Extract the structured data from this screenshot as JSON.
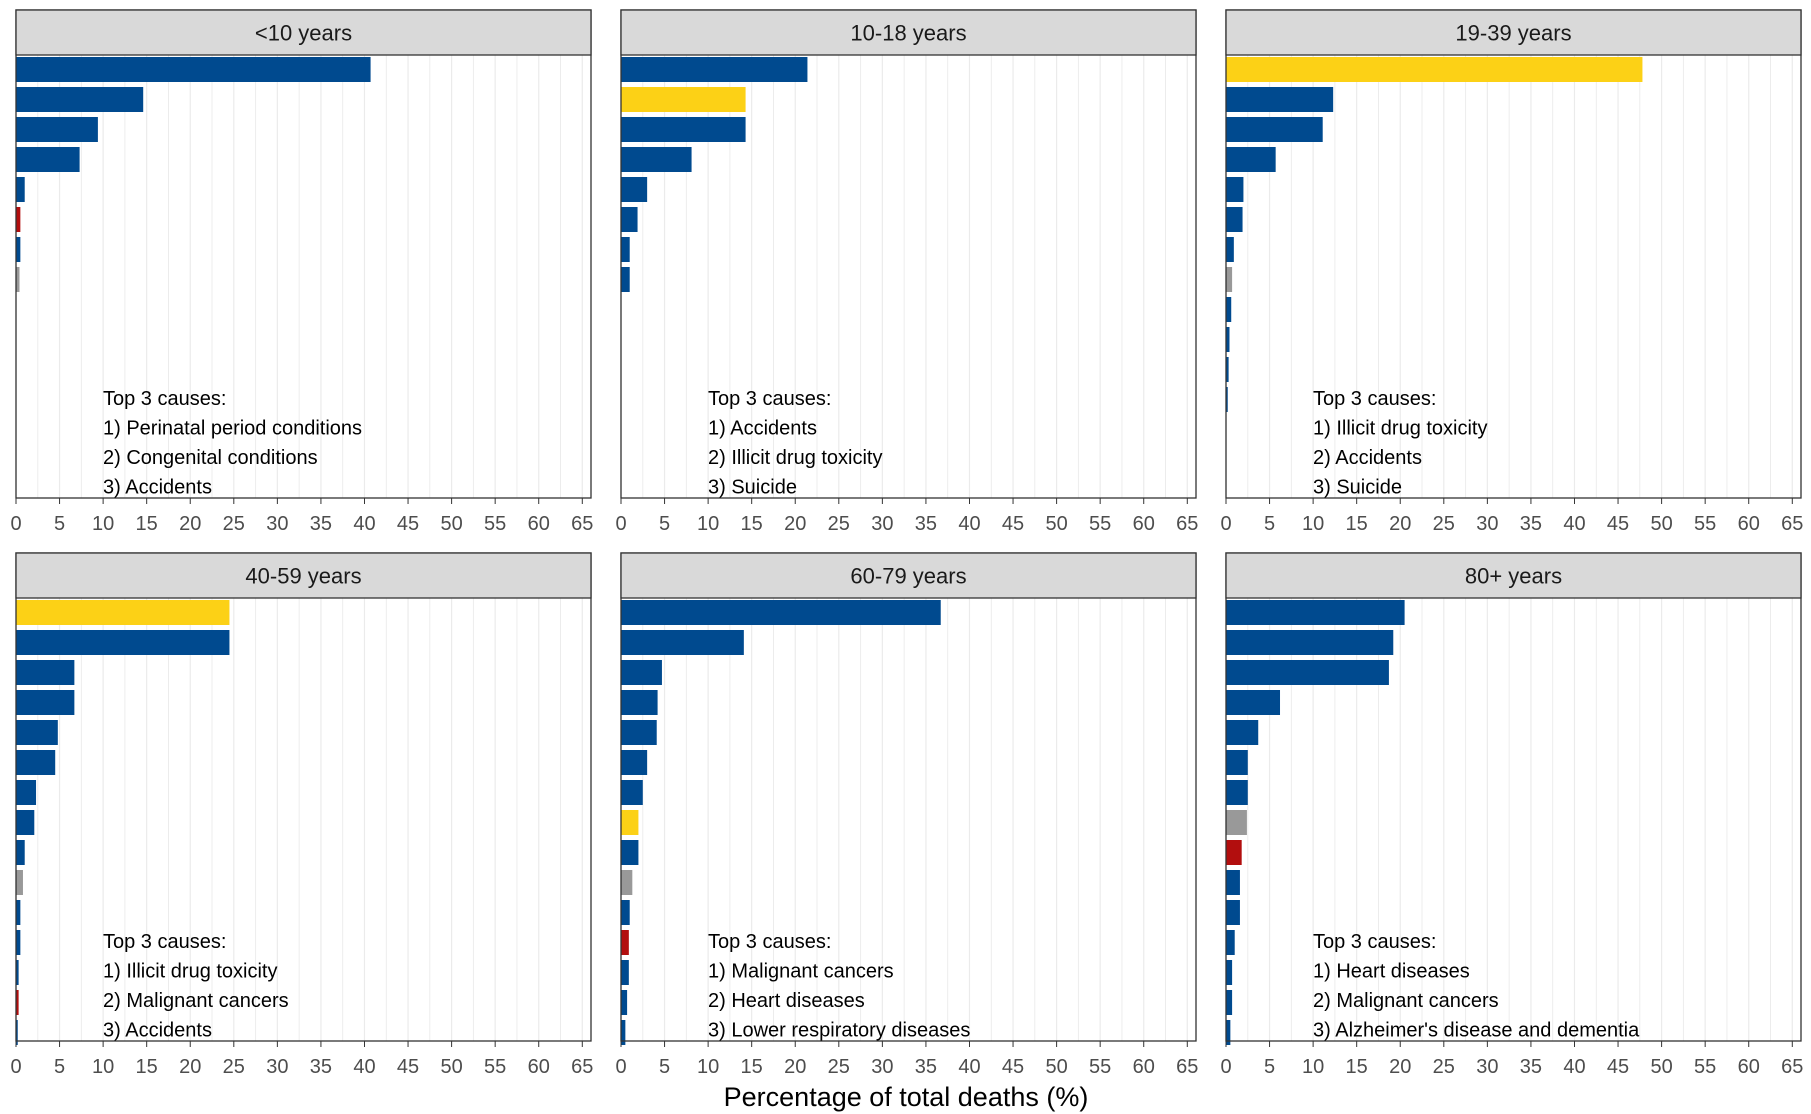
{
  "figure": {
    "xlabel": "Percentage of total deaths (%)"
  },
  "colors": {
    "navy": "#004a8f",
    "yellow": "#fcd116",
    "red": "#b20e0e",
    "gray": "#999999",
    "strip_fill": "#d9d9d9",
    "grid": "#ebebeb"
  },
  "chart_data": [
    {
      "type": "bar",
      "orientation": "horizontal",
      "panel_title": "<10 years",
      "xlim": [
        0,
        66
      ],
      "xticks": [
        0,
        5,
        10,
        15,
        20,
        25,
        30,
        35,
        40,
        45,
        50,
        55,
        60,
        65
      ],
      "values": [
        40.7,
        14.6,
        9.4,
        7.3,
        1.0,
        0.5,
        0.5,
        0.4
      ],
      "colors": [
        "navy",
        "navy",
        "navy",
        "navy",
        "navy",
        "red",
        "navy",
        "gray"
      ],
      "annotation": [
        "Top 3 causes:",
        "1) Perinatal period conditions",
        "2) Congenital conditions",
        "3) Accidents"
      ]
    },
    {
      "type": "bar",
      "orientation": "horizontal",
      "panel_title": "10-18 years",
      "xlim": [
        0,
        66
      ],
      "xticks": [
        0,
        5,
        10,
        15,
        20,
        25,
        30,
        35,
        40,
        45,
        50,
        55,
        60,
        65
      ],
      "values": [
        21.4,
        14.3,
        14.3,
        8.1,
        3.0,
        1.9,
        1.0,
        1.0
      ],
      "colors": [
        "navy",
        "yellow",
        "navy",
        "navy",
        "navy",
        "navy",
        "navy",
        "navy"
      ],
      "annotation": [
        "Top 3 causes:",
        "1) Accidents",
        "2) Illicit drug toxicity",
        "3) Suicide"
      ]
    },
    {
      "type": "bar",
      "orientation": "horizontal",
      "panel_title": "19-39 years",
      "xlim": [
        0,
        66
      ],
      "xticks": [
        0,
        5,
        10,
        15,
        20,
        25,
        30,
        35,
        40,
        45,
        50,
        55,
        60,
        65
      ],
      "values": [
        47.8,
        12.3,
        11.1,
        5.7,
        2.0,
        1.9,
        0.9,
        0.7,
        0.6,
        0.4,
        0.3,
        0.2
      ],
      "colors": [
        "yellow",
        "navy",
        "navy",
        "navy",
        "navy",
        "navy",
        "navy",
        "gray",
        "navy",
        "navy",
        "navy",
        "navy"
      ],
      "annotation": [
        "Top 3 causes:",
        "1) Illicit drug toxicity",
        "2) Accidents",
        "3) Suicide"
      ]
    },
    {
      "type": "bar",
      "orientation": "horizontal",
      "panel_title": "40-59 years",
      "xlim": [
        0,
        66
      ],
      "xticks": [
        0,
        5,
        10,
        15,
        20,
        25,
        30,
        35,
        40,
        45,
        50,
        55,
        60,
        65
      ],
      "values": [
        24.5,
        24.5,
        6.7,
        6.7,
        4.8,
        4.5,
        2.3,
        2.1,
        1.0,
        0.8,
        0.5,
        0.5,
        0.3,
        0.3,
        0.2
      ],
      "colors": [
        "yellow",
        "navy",
        "navy",
        "navy",
        "navy",
        "navy",
        "navy",
        "navy",
        "navy",
        "gray",
        "navy",
        "navy",
        "navy",
        "red",
        "navy"
      ],
      "annotation": [
        "Top 3 causes:",
        "1) Illicit drug toxicity",
        "2) Malignant cancers",
        "3) Accidents"
      ]
    },
    {
      "type": "bar",
      "orientation": "horizontal",
      "panel_title": "60-79 years",
      "xlim": [
        0,
        66
      ],
      "xticks": [
        0,
        5,
        10,
        15,
        20,
        25,
        30,
        35,
        40,
        45,
        50,
        55,
        60,
        65
      ],
      "values": [
        36.7,
        14.1,
        4.7,
        4.2,
        4.1,
        3.0,
        2.5,
        2.0,
        2.0,
        1.3,
        1.0,
        0.9,
        0.9,
        0.7,
        0.5
      ],
      "colors": [
        "navy",
        "navy",
        "navy",
        "navy",
        "navy",
        "navy",
        "navy",
        "yellow",
        "navy",
        "gray",
        "navy",
        "red",
        "navy",
        "navy",
        "navy"
      ],
      "annotation": [
        "Top 3 causes:",
        "1) Malignant cancers",
        "2) Heart diseases",
        "3) Lower respiratory diseases"
      ]
    },
    {
      "type": "bar",
      "orientation": "horizontal",
      "panel_title": "80+ years",
      "xlim": [
        0,
        66
      ],
      "xticks": [
        0,
        5,
        10,
        15,
        20,
        25,
        30,
        35,
        40,
        45,
        50,
        55,
        60,
        65
      ],
      "values": [
        20.5,
        19.2,
        18.7,
        6.2,
        3.7,
        2.5,
        2.5,
        2.4,
        1.8,
        1.6,
        1.6,
        1.0,
        0.7,
        0.7,
        0.5
      ],
      "colors": [
        "navy",
        "navy",
        "navy",
        "navy",
        "navy",
        "navy",
        "navy",
        "gray",
        "red",
        "navy",
        "navy",
        "navy",
        "navy",
        "navy",
        "navy"
      ],
      "annotation": [
        "Top 3 causes:",
        "1) Heart diseases",
        "2) Malignant cancers",
        "3) Alzheimer's disease and dementia"
      ]
    }
  ]
}
